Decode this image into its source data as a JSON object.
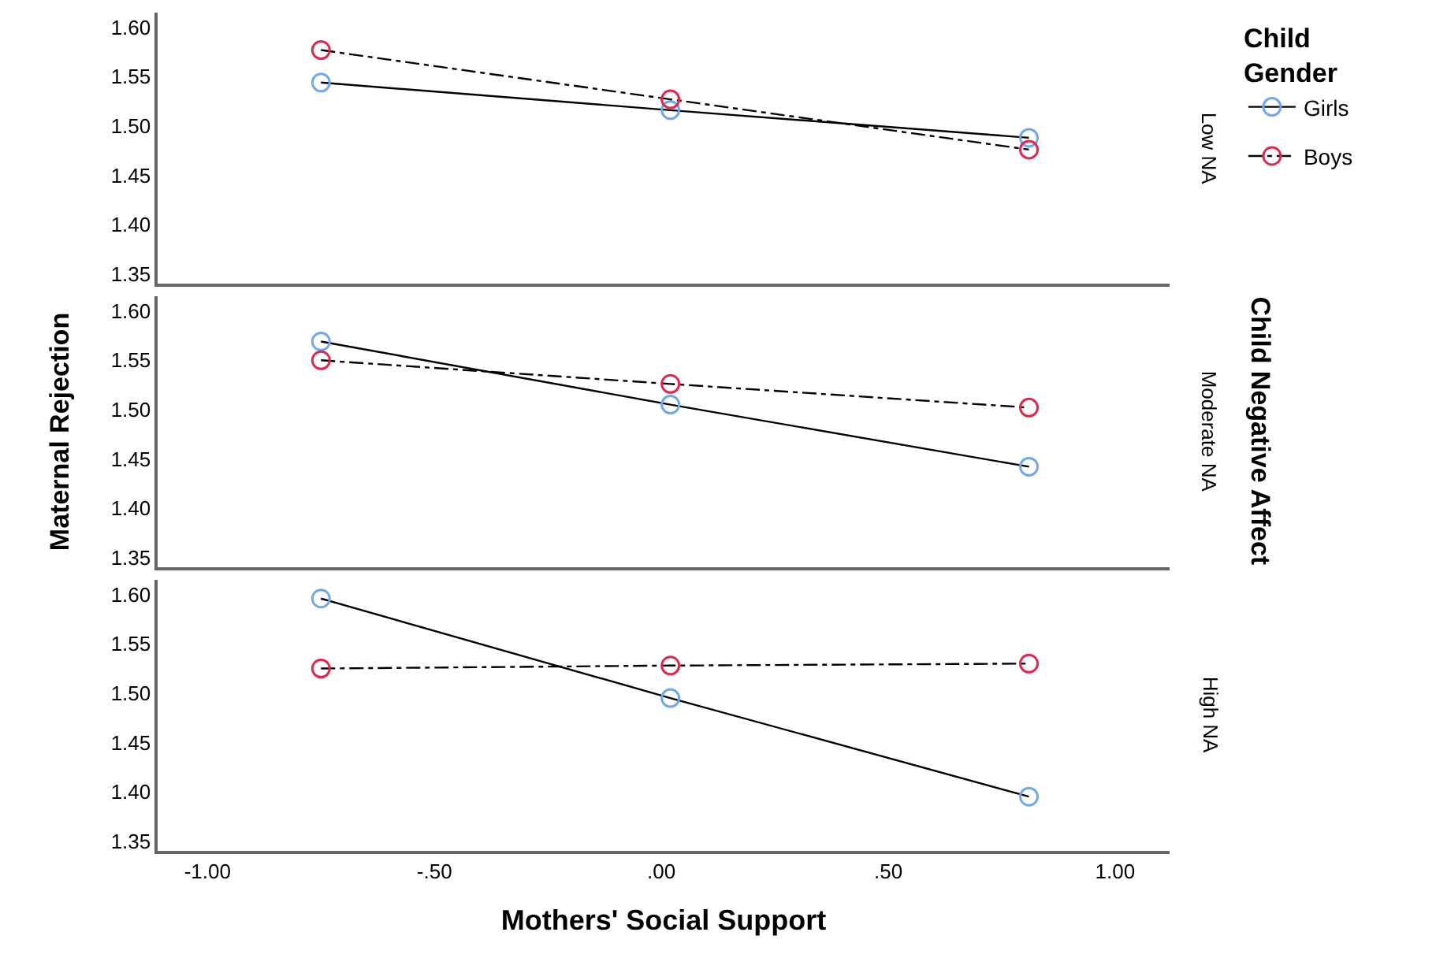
{
  "chart_data": [
    {
      "type": "line",
      "x": [
        -0.75,
        0.02,
        0.81
      ],
      "xlim": [
        -1.11,
        1.12
      ],
      "ylim": [
        1.34,
        1.615
      ],
      "yticks": [
        {
          "value": 1.35,
          "label": "1.35"
        },
        {
          "value": 1.4,
          "label": "1.40"
        },
        {
          "value": 1.45,
          "label": "1.45"
        },
        {
          "value": 1.5,
          "label": "1.50"
        },
        {
          "value": 1.55,
          "label": "1.55"
        },
        {
          "value": 1.6,
          "label": "1.60"
        }
      ],
      "tick_labels": "y",
      "grid": false,
      "marker": "circle",
      "legend": "top right",
      "legend_title": "Child Gender",
      "annotations": [
        "Low NA"
      ],
      "series": [
        {
          "name": "Girls",
          "color": "#6fa8ec",
          "line_style": "solid",
          "values": [
            1.544,
            1.516,
            1.488
          ]
        },
        {
          "name": "Boys",
          "color": "#e0284f",
          "line_style": "dashed",
          "values": [
            1.577,
            1.527,
            1.476
          ]
        }
      ]
    },
    {
      "type": "line",
      "x": [
        -0.75,
        0.02,
        0.81
      ],
      "xlim": [
        -1.11,
        1.12
      ],
      "ylim": [
        1.34,
        1.615
      ],
      "yticks": [
        {
          "value": 1.35,
          "label": "1.35"
        },
        {
          "value": 1.4,
          "label": "1.40"
        },
        {
          "value": 1.45,
          "label": "1.45"
        },
        {
          "value": 1.5,
          "label": "1.50"
        },
        {
          "value": 1.55,
          "label": "1.55"
        },
        {
          "value": 1.6,
          "label": "1.60"
        }
      ],
      "tick_labels": "y",
      "grid": false,
      "marker": "circle",
      "ylabel": "Maternal Rejection",
      "annotations": [
        "Moderate NA",
        "Child Negative Affect"
      ],
      "series": [
        {
          "color": "#6fa8ec",
          "line_style": "solid",
          "values": [
            1.569,
            1.505,
            1.442
          ]
        },
        {
          "color": "#e0284f",
          "line_style": "dashed",
          "values": [
            1.55,
            1.526,
            1.502
          ]
        }
      ]
    },
    {
      "type": "line",
      "x": [
        -0.75,
        0.02,
        0.81
      ],
      "xlim": [
        -1.11,
        1.12
      ],
      "xticks": [
        {
          "value": -1,
          "label": "-1.00"
        },
        {
          "value": -0.5,
          "label": "-.50"
        },
        {
          "value": 0,
          "label": ".00"
        },
        {
          "value": 0.5,
          "label": ".50"
        },
        {
          "value": 1,
          "label": "1.00"
        }
      ],
      "ylim": [
        1.34,
        1.615
      ],
      "yticks": [
        {
          "value": 1.35,
          "label": "1.35"
        },
        {
          "value": 1.4,
          "label": "1.40"
        },
        {
          "value": 1.45,
          "label": "1.45"
        },
        {
          "value": 1.5,
          "label": "1.50"
        },
        {
          "value": 1.55,
          "label": "1.55"
        },
        {
          "value": 1.6,
          "label": "1.60"
        }
      ],
      "grid": false,
      "marker": "circle",
      "xlabel": "Mothers' Social Support",
      "annotations": [
        "High NA"
      ],
      "series": [
        {
          "color": "#6fa8ec",
          "line_style": "solid",
          "values": [
            1.596,
            1.495,
            1.395
          ]
        },
        {
          "color": "#e0284f",
          "line_style": "dashed",
          "values": [
            1.525,
            1.528,
            1.53
          ]
        }
      ]
    }
  ]
}
